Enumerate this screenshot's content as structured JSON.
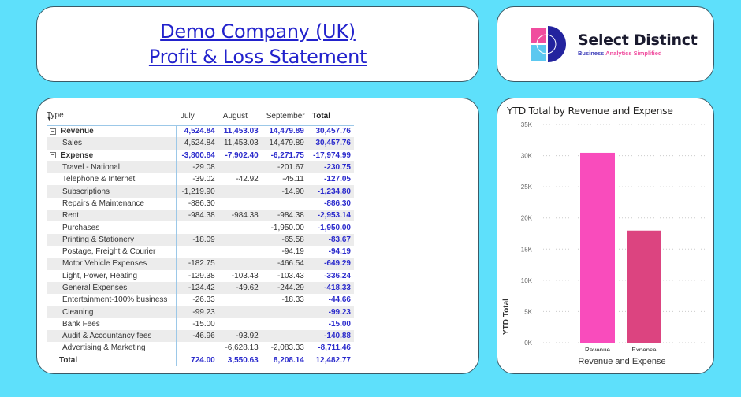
{
  "header": {
    "title_line1": "Demo Company (UK)",
    "title_line2": "Profit & Loss Statement"
  },
  "logo": {
    "name": "Select Distinct",
    "tagline_part1": "Business",
    "tagline_part2": "Analytics Simplified"
  },
  "matrix": {
    "columns": [
      "Type",
      "July",
      "August",
      "September",
      "Total"
    ],
    "groups": [
      {
        "label": "Revenue",
        "expand_icon": "minus-box-icon",
        "values": [
          "4,524.84",
          "11,453.03",
          "14,479.89",
          "30,457.76"
        ],
        "rows": [
          {
            "label": "Sales",
            "values": [
              "4,524.84",
              "11,453.03",
              "14,479.89",
              "30,457.76"
            ]
          }
        ]
      },
      {
        "label": "Expense",
        "expand_icon": "minus-box-icon",
        "values": [
          "-3,800.84",
          "-7,902.40",
          "-6,271.75",
          "-17,974.99"
        ],
        "rows": [
          {
            "label": "Travel - National",
            "values": [
              "-29.08",
              "",
              "-201.67",
              "-230.75"
            ]
          },
          {
            "label": "Telephone & Internet",
            "values": [
              "-39.02",
              "-42.92",
              "-45.11",
              "-127.05"
            ]
          },
          {
            "label": "Subscriptions",
            "values": [
              "-1,219.90",
              "",
              "-14.90",
              "-1,234.80"
            ]
          },
          {
            "label": "Repairs & Maintenance",
            "values": [
              "-886.30",
              "",
              "",
              "-886.30"
            ]
          },
          {
            "label": "Rent",
            "values": [
              "-984.38",
              "-984.38",
              "-984.38",
              "-2,953.14"
            ]
          },
          {
            "label": "Purchases",
            "values": [
              "",
              "",
              "-1,950.00",
              "-1,950.00"
            ]
          },
          {
            "label": "Printing & Stationery",
            "values": [
              "-18.09",
              "",
              "-65.58",
              "-83.67"
            ]
          },
          {
            "label": "Postage, Freight & Courier",
            "values": [
              "",
              "",
              "-94.19",
              "-94.19"
            ]
          },
          {
            "label": "Motor Vehicle Expenses",
            "values": [
              "-182.75",
              "",
              "-466.54",
              "-649.29"
            ]
          },
          {
            "label": "Light, Power, Heating",
            "values": [
              "-129.38",
              "-103.43",
              "-103.43",
              "-336.24"
            ]
          },
          {
            "label": "General Expenses",
            "values": [
              "-124.42",
              "-49.62",
              "-244.29",
              "-418.33"
            ]
          },
          {
            "label": "Entertainment-100% business",
            "values": [
              "-26.33",
              "",
              "-18.33",
              "-44.66"
            ]
          },
          {
            "label": "Cleaning",
            "values": [
              "-99.23",
              "",
              "",
              "-99.23"
            ]
          },
          {
            "label": "Bank Fees",
            "values": [
              "-15.00",
              "",
              "",
              "-15.00"
            ]
          },
          {
            "label": "Audit & Accountancy fees",
            "values": [
              "-46.96",
              "-93.92",
              "",
              "-140.88"
            ]
          },
          {
            "label": "Advertising & Marketing",
            "values": [
              "",
              "-6,628.13",
              "-2,083.33",
              "-8,711.46"
            ]
          }
        ]
      }
    ],
    "total": {
      "label": "Total",
      "values": [
        "724.00",
        "3,550.63",
        "8,208.14",
        "12,482.77"
      ]
    }
  },
  "chart_data": {
    "type": "bar",
    "title": "YTD Total by Revenue and Expense",
    "xlabel": "Revenue and Expense",
    "ylabel": "YTD Total",
    "categories": [
      "Revenue",
      "Expense"
    ],
    "values": [
      30457.76,
      17974.99
    ],
    "colors": [
      "#f94cbc",
      "#dc4480"
    ],
    "ylim": [
      0,
      35000
    ],
    "yticks": [
      "0K",
      "5K",
      "10K",
      "15K",
      "20K",
      "25K",
      "30K",
      "35K"
    ],
    "grid": true,
    "legend": "none"
  },
  "colors": {
    "background": "#5ee0fb",
    "title_link": "#2222cc",
    "total_values": "#2a2acc"
  }
}
